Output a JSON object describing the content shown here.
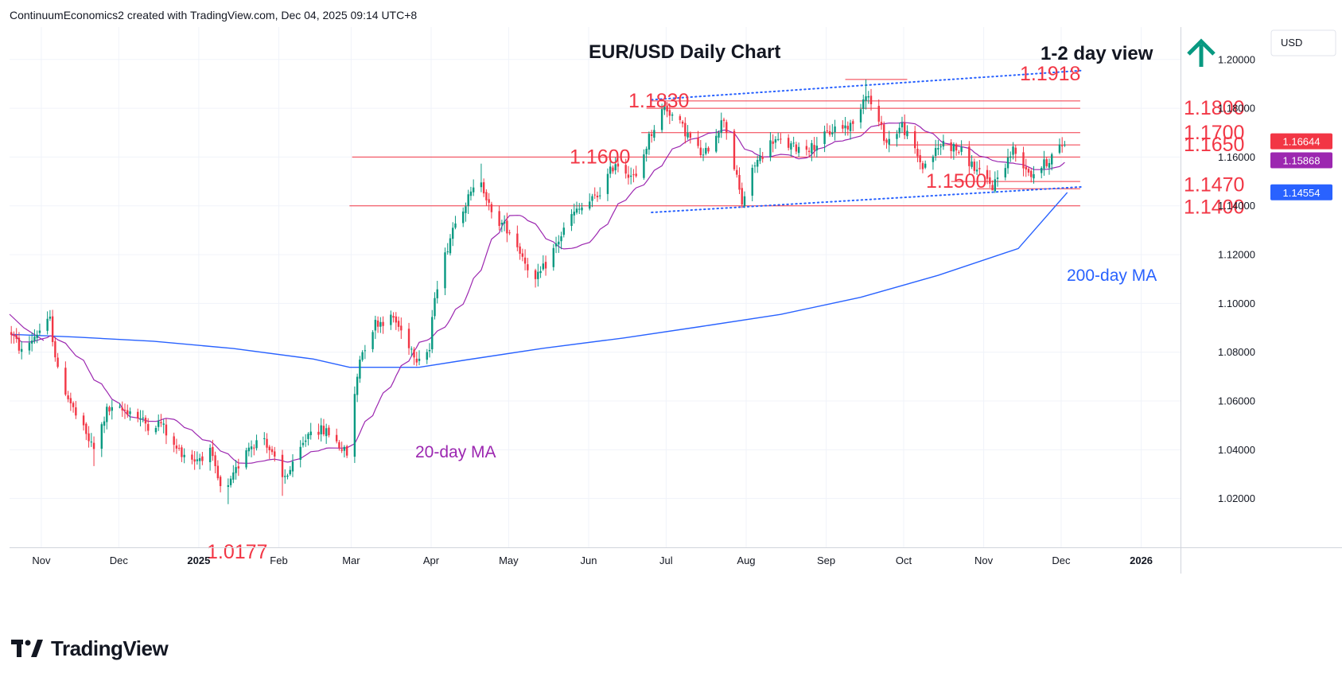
{
  "header": {
    "text": "ContinuumEconomics2 created with TradingView.com, Dec 04, 2025 09:14 UTC+8"
  },
  "footer": {
    "brand": "TradingView"
  },
  "chart_data": {
    "type": "candlestick",
    "title": "EUR/USD Daily Chart",
    "view_label": "1-2 day view",
    "view_direction": "up",
    "currency": "USD",
    "ylim": [
      1.0,
      1.2133
    ],
    "y_ticks": [
      "1.20000",
      "1.18000",
      "1.16000",
      "1.14000",
      "1.12000",
      "1.10000",
      "1.08000",
      "1.06000",
      "1.04000",
      "1.02000"
    ],
    "x_ticks": [
      "Nov",
      "Dec",
      "2025",
      "Feb",
      "Mar",
      "Apr",
      "May",
      "Jun",
      "Jul",
      "Aug",
      "Sep",
      "Oct",
      "Nov",
      "Dec",
      "2026"
    ],
    "price_tags": [
      {
        "label": "1.16644",
        "value": 1.16644,
        "color": "#f23645"
      },
      {
        "label": "1.15868",
        "value": 1.15868,
        "color": "#9c27b0"
      },
      {
        "label": "1.14554",
        "value": 1.14554,
        "color": "#2962ff"
      }
    ],
    "level_labels": [
      {
        "text": "1.1918",
        "value": 1.1918
      },
      {
        "text": "1.1830",
        "value": 1.183
      },
      {
        "text": "1.1800",
        "value": 1.18
      },
      {
        "text": "1.1700",
        "value": 1.17
      },
      {
        "text": "1.1650",
        "value": 1.165
      },
      {
        "text": "1.1600",
        "value": 1.16
      },
      {
        "text": "1.1500",
        "value": 1.15
      },
      {
        "text": "1.1470",
        "value": 1.147
      },
      {
        "text": "1.1400",
        "value": 1.14
      },
      {
        "text": "1.0177",
        "value": 1.0177
      }
    ],
    "annotations": [
      "20-day MA",
      "200-day MA"
    ],
    "colors": {
      "up": "#089981",
      "down": "#f23645",
      "ma20": "#9c27b0",
      "ma200": "#2962ff",
      "levels": "#f23645",
      "trend": "#2962ff"
    },
    "anchors": [
      [
        "2024-10-21",
        1.088
      ],
      [
        "2024-10-25",
        1.08
      ],
      [
        "2024-10-31",
        1.088
      ],
      [
        "2024-11-05",
        1.093
      ],
      [
        "2024-11-08",
        1.072
      ],
      [
        "2024-11-15",
        1.054
      ],
      [
        "2024-11-22",
        1.04
      ],
      [
        "2024-11-27",
        1.056
      ],
      [
        "2024-12-06",
        1.056
      ],
      [
        "2024-12-13",
        1.05
      ],
      [
        "2024-12-18",
        1.051
      ],
      [
        "2024-12-23",
        1.041
      ],
      [
        "2024-12-31",
        1.036
      ],
      [
        "2025-01-06",
        1.039
      ],
      [
        "2025-01-10",
        1.024
      ],
      [
        "2025-01-13",
        1.024
      ],
      [
        "2025-01-20",
        1.041
      ],
      [
        "2025-01-27",
        1.045
      ],
      [
        "2025-02-03",
        1.028
      ],
      [
        "2025-02-07",
        1.033
      ],
      [
        "2025-02-14",
        1.049
      ],
      [
        "2025-02-21",
        1.047
      ],
      [
        "2025-02-28",
        1.038
      ],
      [
        "2025-03-05",
        1.078
      ],
      [
        "2025-03-11",
        1.092
      ],
      [
        "2025-03-18",
        1.094
      ],
      [
        "2025-03-27",
        1.078
      ],
      [
        "2025-04-01",
        1.081
      ],
      [
        "2025-04-03",
        1.104
      ],
      [
        "2025-04-11",
        1.135
      ],
      [
        "2025-04-21",
        1.151
      ],
      [
        "2025-04-25",
        1.136
      ],
      [
        "2025-05-02",
        1.13
      ],
      [
        "2025-05-12",
        1.109
      ],
      [
        "2025-05-16",
        1.116
      ],
      [
        "2025-05-26",
        1.136
      ],
      [
        "2025-06-05",
        1.144
      ],
      [
        "2025-06-12",
        1.158
      ],
      [
        "2025-06-20",
        1.151
      ],
      [
        "2025-06-25",
        1.168
      ],
      [
        "2025-07-01",
        1.181
      ],
      [
        "2025-07-08",
        1.172
      ],
      [
        "2025-07-16",
        1.16
      ],
      [
        "2025-07-24",
        1.176
      ],
      [
        "2025-07-31",
        1.141
      ],
      [
        "2025-08-05",
        1.157
      ],
      [
        "2025-08-12",
        1.167
      ],
      [
        "2025-08-20",
        1.164
      ],
      [
        "2025-08-27",
        1.164
      ],
      [
        "2025-09-05",
        1.172
      ],
      [
        "2025-09-12",
        1.173
      ],
      [
        "2025-09-17",
        1.187
      ],
      [
        "2025-09-25",
        1.166
      ],
      [
        "2025-10-01",
        1.173
      ],
      [
        "2025-10-09",
        1.156
      ],
      [
        "2025-10-17",
        1.166
      ],
      [
        "2025-10-24",
        1.162
      ],
      [
        "2025-10-31",
        1.153
      ],
      [
        "2025-11-05",
        1.148
      ],
      [
        "2025-11-13",
        1.163
      ],
      [
        "2025-11-20",
        1.153
      ],
      [
        "2025-11-25",
        1.157
      ],
      [
        "2025-12-03",
        1.166
      ]
    ]
  }
}
